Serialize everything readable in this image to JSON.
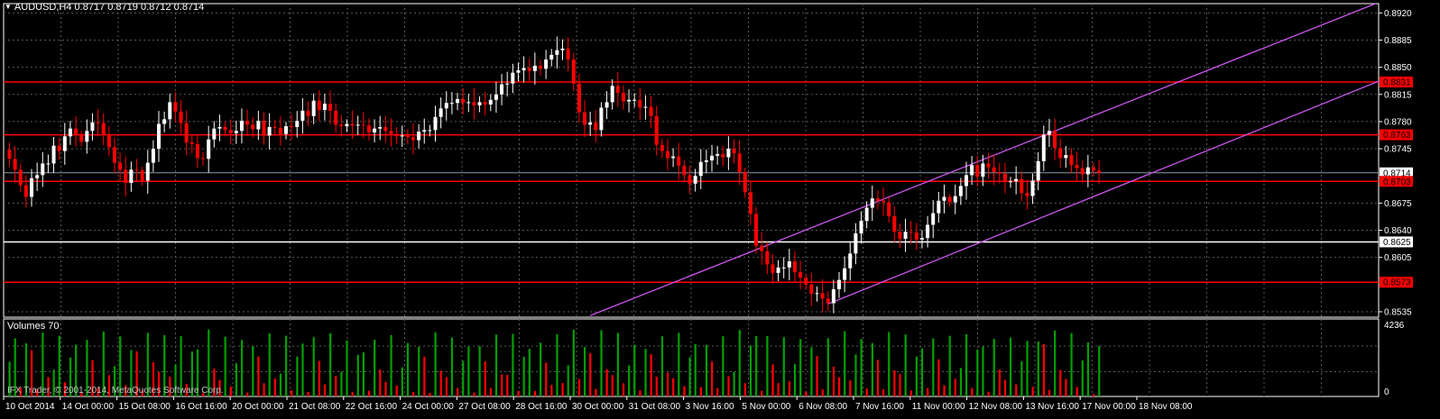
{
  "header": {
    "symbol_info": "AUDUSD,H4  0.8717 0.8719 0.8712 0.8714",
    "menu_icon": "triangle-down-icon"
  },
  "volume_panel": {
    "title": "Volumes 70",
    "max_label": "4236",
    "min_label": "0"
  },
  "copyright": "IFX Trader, © 2001-2014, MetaQuotes Software Corp.",
  "colors": {
    "background": "#000000",
    "grid": "#5a5a5a",
    "bull_candle": "#ffffff",
    "bear_candle": "#ff0000",
    "volume_up": "#00a000",
    "volume_down": "#ff0000",
    "resistance_line": "#ff0000",
    "support_line": "#ffffff",
    "channel_line": "#cc55ee",
    "current_price_line": "#8899aa"
  },
  "chart_data": {
    "type": "candlestick",
    "symbol": "AUDUSD",
    "timeframe": "H4",
    "ylim": [
      0.8528,
      0.8932
    ],
    "grid": true,
    "y_ticks": [
      "0.8920",
      "0.8885",
      "0.8850",
      "0.8815",
      "0.8780",
      "0.8745",
      "0.8675",
      "0.8640",
      "0.8605",
      "0.8535"
    ],
    "x_ticks": [
      "10 Oct 2014",
      "14 Oct 00:00",
      "15 Oct 08:00",
      "16 Oct 16:00",
      "20 Oct 00:00",
      "21 Oct 08:00",
      "22 Oct 16:00",
      "24 Oct 00:00",
      "27 Oct 08:00",
      "28 Oct 16:00",
      "30 Oct 00:00",
      "31 Oct 08:00",
      "3 Nov 16:00",
      "5 Nov 00:00",
      "6 Nov 08:00",
      "7 Nov 16:00",
      "11 Nov 00:00",
      "12 Nov 08:00",
      "13 Nov 16:00",
      "17 Nov 00:00",
      "18 Nov 08:00"
    ],
    "horizontal_lines": [
      {
        "price": 0.8831,
        "label": "0.8831",
        "style": "red"
      },
      {
        "price": 0.8763,
        "label": "0.8763",
        "style": "red"
      },
      {
        "price": 0.8714,
        "label": "0.8714",
        "style": "current"
      },
      {
        "price": 0.8703,
        "label": "0.8703",
        "style": "red"
      },
      {
        "price": 0.8625,
        "label": "0.8625",
        "style": "white"
      },
      {
        "price": 0.8573,
        "label": "0.8573",
        "style": "red"
      }
    ],
    "channel_lines": [
      {
        "start_bar": 105,
        "start_price": 0.853,
        "end_bar": 247,
        "end_price": 0.8932
      },
      {
        "start_bar": 148,
        "start_price": 0.8545,
        "end_bar": 254,
        "end_price": 0.8832
      }
    ],
    "close_prices": [
      0.8732,
      0.8718,
      0.8698,
      0.8683,
      0.8707,
      0.8711,
      0.8726,
      0.8726,
      0.8749,
      0.8742,
      0.8761,
      0.8771,
      0.8764,
      0.8754,
      0.8768,
      0.8779,
      0.8778,
      0.8763,
      0.8747,
      0.8727,
      0.8718,
      0.8701,
      0.8718,
      0.8717,
      0.8704,
      0.8727,
      0.8745,
      0.8777,
      0.8783,
      0.8805,
      0.8793,
      0.8778,
      0.8753,
      0.8751,
      0.8733,
      0.8732,
      0.8757,
      0.8771,
      0.8773,
      0.8769,
      0.8765,
      0.8768,
      0.8781,
      0.8776,
      0.877,
      0.8781,
      0.8762,
      0.8773,
      0.8772,
      0.8764,
      0.8774,
      0.8773,
      0.8781,
      0.8794,
      0.8787,
      0.8807,
      0.8795,
      0.8803,
      0.8794,
      0.8776,
      0.8774,
      0.8777,
      0.8775,
      0.8776,
      0.8775,
      0.8766,
      0.8771,
      0.8773,
      0.8768,
      0.8764,
      0.8761,
      0.8762,
      0.876,
      0.8756,
      0.8767,
      0.8769,
      0.8769,
      0.8786,
      0.8797,
      0.8804,
      0.8804,
      0.8809,
      0.8804,
      0.8805,
      0.8801,
      0.8805,
      0.8802,
      0.8808,
      0.8815,
      0.8828,
      0.8829,
      0.8843,
      0.8846,
      0.8849,
      0.8845,
      0.8852,
      0.8848,
      0.886,
      0.8866,
      0.8872,
      0.8874,
      0.886,
      0.8829,
      0.8792,
      0.8776,
      0.8779,
      0.8769,
      0.8798,
      0.8805,
      0.8826,
      0.8817,
      0.8806,
      0.8808,
      0.8808,
      0.8798,
      0.8799,
      0.8787,
      0.875,
      0.8742,
      0.8733,
      0.8735,
      0.8723,
      0.8711,
      0.87,
      0.871,
      0.8728,
      0.873,
      0.8736,
      0.8738,
      0.8734,
      0.8745,
      0.8739,
      0.8715,
      0.8689,
      0.8661,
      0.862,
      0.8613,
      0.8596,
      0.8585,
      0.8592,
      0.8592,
      0.86,
      0.8586,
      0.8579,
      0.857,
      0.8558,
      0.8559,
      0.8552,
      0.8546,
      0.8564,
      0.8576,
      0.8591,
      0.861,
      0.8636,
      0.8652,
      0.8669,
      0.8681,
      0.8678,
      0.8676,
      0.8658,
      0.8638,
      0.8629,
      0.8638,
      0.8637,
      0.8628,
      0.863,
      0.8647,
      0.8662,
      0.8678,
      0.8683,
      0.8676,
      0.8684,
      0.8697,
      0.8711,
      0.8724,
      0.8709,
      0.8726,
      0.8721,
      0.8715,
      0.8713,
      0.8702,
      0.8703,
      0.8706,
      0.8688,
      0.8684,
      0.8704,
      0.8729,
      0.8763,
      0.8768,
      0.8746,
      0.8733,
      0.8737,
      0.8724,
      0.872,
      0.8712,
      0.8721,
      0.8717,
      0.8714
    ],
    "volume_scale_max": 4236,
    "volume_description": "one volume bar per candle, green when volume rose vs previous bar, red when it fell"
  }
}
